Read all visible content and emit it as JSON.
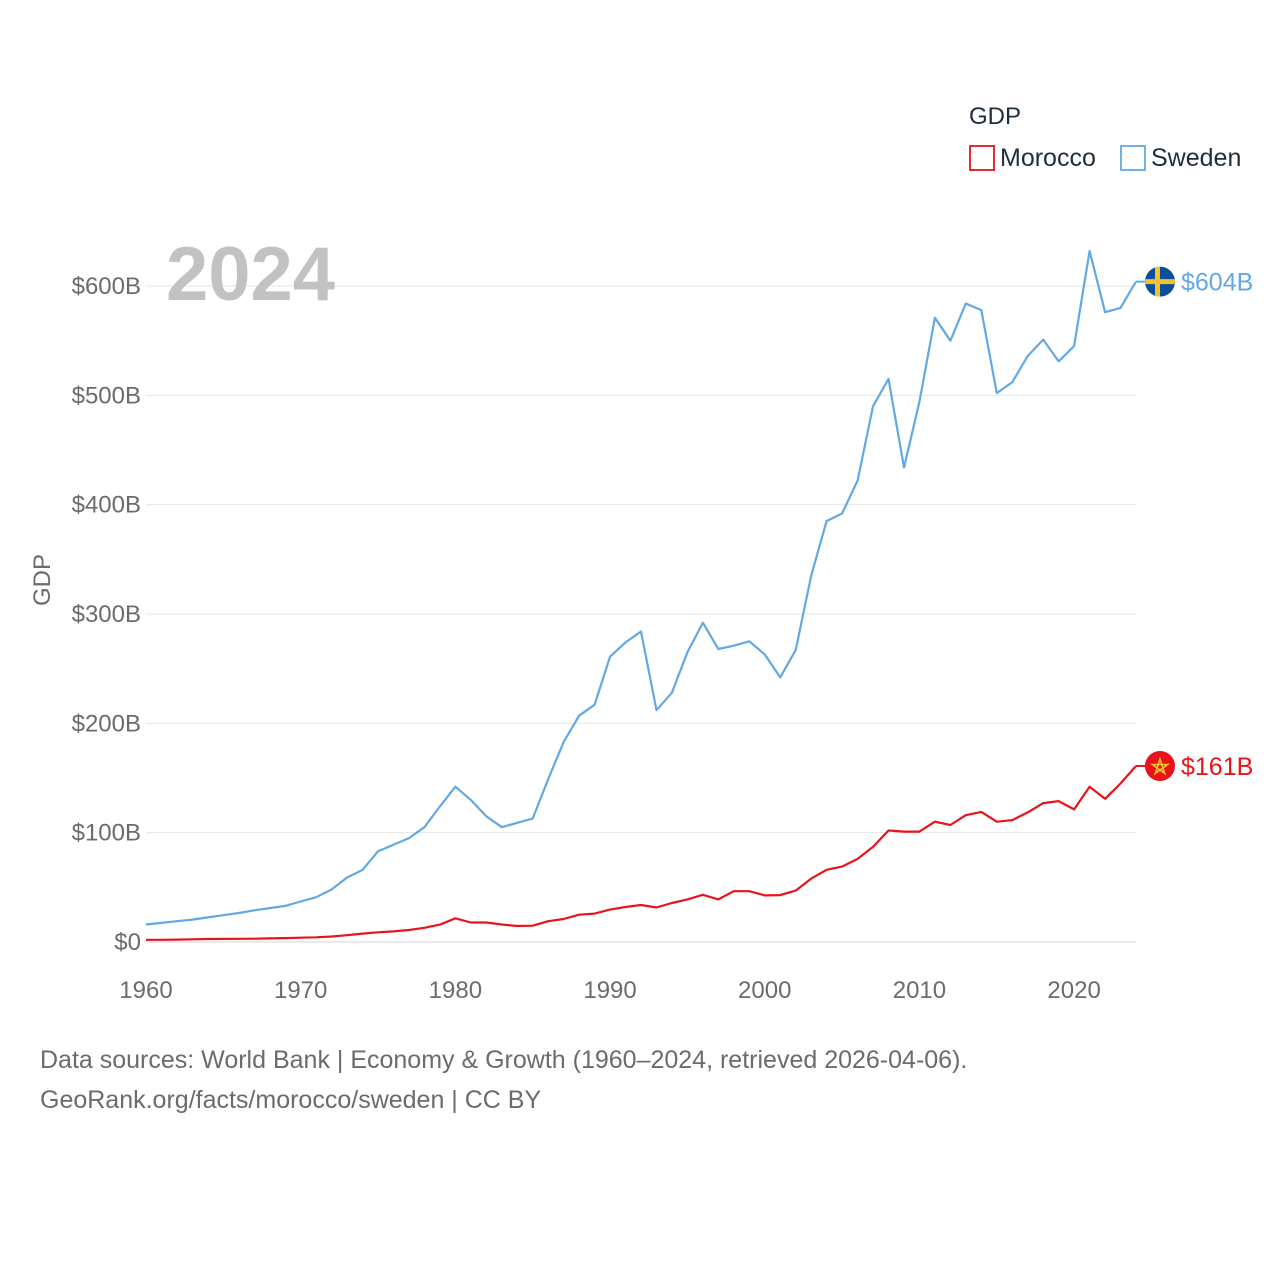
{
  "chart_data": {
    "type": "line",
    "year_label": "2024",
    "ylabel": "GDP",
    "ylim": [
      0,
      650
    ],
    "y_ticks": [
      {
        "value": 0,
        "label": "$0"
      },
      {
        "value": 100,
        "label": "$100B"
      },
      {
        "value": 200,
        "label": "$200B"
      },
      {
        "value": 300,
        "label": "$300B"
      },
      {
        "value": 400,
        "label": "$400B"
      },
      {
        "value": 500,
        "label": "$500B"
      },
      {
        "value": 600,
        "label": "$600B"
      }
    ],
    "xlim": [
      1960,
      2024
    ],
    "x_ticks": [
      {
        "value": 1960,
        "label": "1960"
      },
      {
        "value": 1970,
        "label": "1970"
      },
      {
        "value": 1980,
        "label": "1980"
      },
      {
        "value": 1990,
        "label": "1990"
      },
      {
        "value": 2000,
        "label": "2000"
      },
      {
        "value": 2010,
        "label": "2010"
      },
      {
        "value": 2020,
        "label": "2020"
      }
    ],
    "legend": {
      "title": "GDP",
      "position": "top-right"
    },
    "x": [
      1960,
      1961,
      1962,
      1963,
      1964,
      1965,
      1966,
      1967,
      1968,
      1969,
      1970,
      1971,
      1972,
      1973,
      1974,
      1975,
      1976,
      1977,
      1978,
      1979,
      1980,
      1981,
      1982,
      1983,
      1984,
      1985,
      1986,
      1987,
      1988,
      1989,
      1990,
      1991,
      1992,
      1993,
      1994,
      1995,
      1996,
      1997,
      1998,
      1999,
      2000,
      2001,
      2002,
      2003,
      2004,
      2005,
      2006,
      2007,
      2008,
      2009,
      2010,
      2011,
      2012,
      2013,
      2014,
      2015,
      2016,
      2017,
      2018,
      2019,
      2020,
      2021,
      2022,
      2023,
      2024
    ],
    "series": [
      {
        "name": "Morocco",
        "color": "#e8141a",
        "end_label": "$161B",
        "flag": "morocco-flag",
        "values": [
          2.0,
          2.0,
          2.2,
          2.5,
          2.7,
          2.8,
          2.9,
          3.0,
          3.3,
          3.6,
          3.9,
          4.3,
          5.0,
          6.2,
          7.7,
          8.9,
          9.7,
          11.0,
          13.0,
          15.9,
          21.7,
          17.8,
          17.8,
          16.0,
          14.6,
          14.9,
          19.0,
          21.0,
          25.0,
          26.0,
          29.6,
          32.0,
          33.8,
          31.6,
          35.7,
          39.0,
          43.2,
          39.0,
          46.5,
          46.5,
          42.6,
          42.9,
          47.0,
          58.0,
          66.0,
          69.0,
          76.0,
          87.0,
          102.0,
          101.0,
          101.0,
          110.0,
          107.0,
          116.0,
          119.0,
          110.0,
          111.5,
          118.5,
          127.0,
          128.9,
          121.3,
          142.0,
          131.0,
          145.0,
          161.0
        ]
      },
      {
        "name": "Sweden",
        "color": "#62a8e4",
        "end_label": "$604B",
        "flag": "sweden-flag",
        "values": [
          16.0,
          17.5,
          19.0,
          20.5,
          22.5,
          24.5,
          26.5,
          29.0,
          31.0,
          33.0,
          37.0,
          41.0,
          48.0,
          59.0,
          66.0,
          83.0,
          89.0,
          95.0,
          105.0,
          124.0,
          142.0,
          130.0,
          115.0,
          105.0,
          109.0,
          113.0,
          149.0,
          183.0,
          207.0,
          217.0,
          261.0,
          274.0,
          284.0,
          212.0,
          228.0,
          265.0,
          292.0,
          268.0,
          271.0,
          275.0,
          263.0,
          242.0,
          267.0,
          335.0,
          385.0,
          392.0,
          422.0,
          490.0,
          515.0,
          434.0,
          494.0,
          571.0,
          550.0,
          584.0,
          578.0,
          502.0,
          512.0,
          536.0,
          551.0,
          531.0,
          545.0,
          632.0,
          576.0,
          580.0,
          604.0
        ]
      }
    ]
  },
  "footer": {
    "source_line": "Data sources: World Bank | Economy & Growth (1960–2024, retrieved 2026-04-06).",
    "url_line": "GeoRank.org/facts/morocco/sweden | CC BY"
  }
}
